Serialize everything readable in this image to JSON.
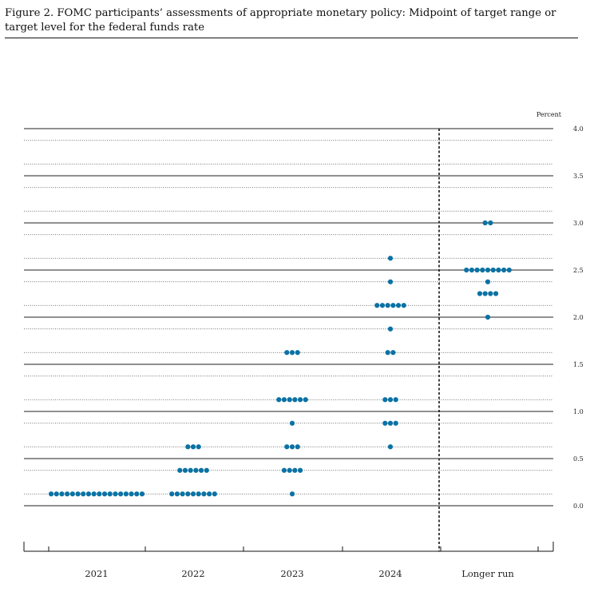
{
  "figure": {
    "caption": "Figure 2.  FOMC participants’ assessments of appropriate monetary policy:  Midpoint of target range or target level for the federal funds rate"
  },
  "chart_data": {
    "type": "scatter",
    "ylabel": "Percent",
    "ylim": [
      -0.375,
      4.0
    ],
    "yticks": [
      0.0,
      0.5,
      1.0,
      1.5,
      2.0,
      2.5,
      3.0,
      3.5,
      4.0
    ],
    "ytick_labels": [
      "0.0",
      "0.5",
      "1.0",
      "1.5",
      "2.0",
      "2.5",
      "3.0",
      "3.5",
      "4.0"
    ],
    "gridlines_dotted": [
      0.125,
      0.375,
      0.625,
      0.875,
      1.125,
      1.375,
      1.625,
      1.875,
      2.125,
      2.375,
      2.625,
      2.875,
      3.125,
      3.375,
      3.625,
      3.875
    ],
    "categories": [
      "2021",
      "2022",
      "2023",
      "2024",
      "Longer run"
    ],
    "dot_color": "#0b72a4",
    "series": [
      {
        "values": [
          {
            "y": 0.125,
            "count": 18
          }
        ]
      },
      {
        "values": [
          {
            "y": 0.625,
            "count": 3
          },
          {
            "y": 0.375,
            "count": 6
          },
          {
            "y": 0.125,
            "count": 9
          }
        ]
      },
      {
        "values": [
          {
            "y": 1.625,
            "count": 3
          },
          {
            "y": 1.125,
            "count": 6
          },
          {
            "y": 0.875,
            "count": 1
          },
          {
            "y": 0.625,
            "count": 3
          },
          {
            "y": 0.375,
            "count": 4
          },
          {
            "y": 0.125,
            "count": 1
          }
        ]
      },
      {
        "values": [
          {
            "y": 2.625,
            "count": 1
          },
          {
            "y": 2.375,
            "count": 1
          },
          {
            "y": 2.125,
            "count": 6
          },
          {
            "y": 1.875,
            "count": 1
          },
          {
            "y": 1.625,
            "count": 2
          },
          {
            "y": 1.125,
            "count": 3
          },
          {
            "y": 0.875,
            "count": 3
          },
          {
            "y": 0.625,
            "count": 1
          }
        ]
      },
      {
        "values": [
          {
            "y": 3.0,
            "count": 2
          },
          {
            "y": 2.5,
            "count": 9
          },
          {
            "y": 2.375,
            "count": 1
          },
          {
            "y": 2.25,
            "count": 4
          },
          {
            "y": 2.0,
            "count": 1
          }
        ]
      }
    ]
  }
}
